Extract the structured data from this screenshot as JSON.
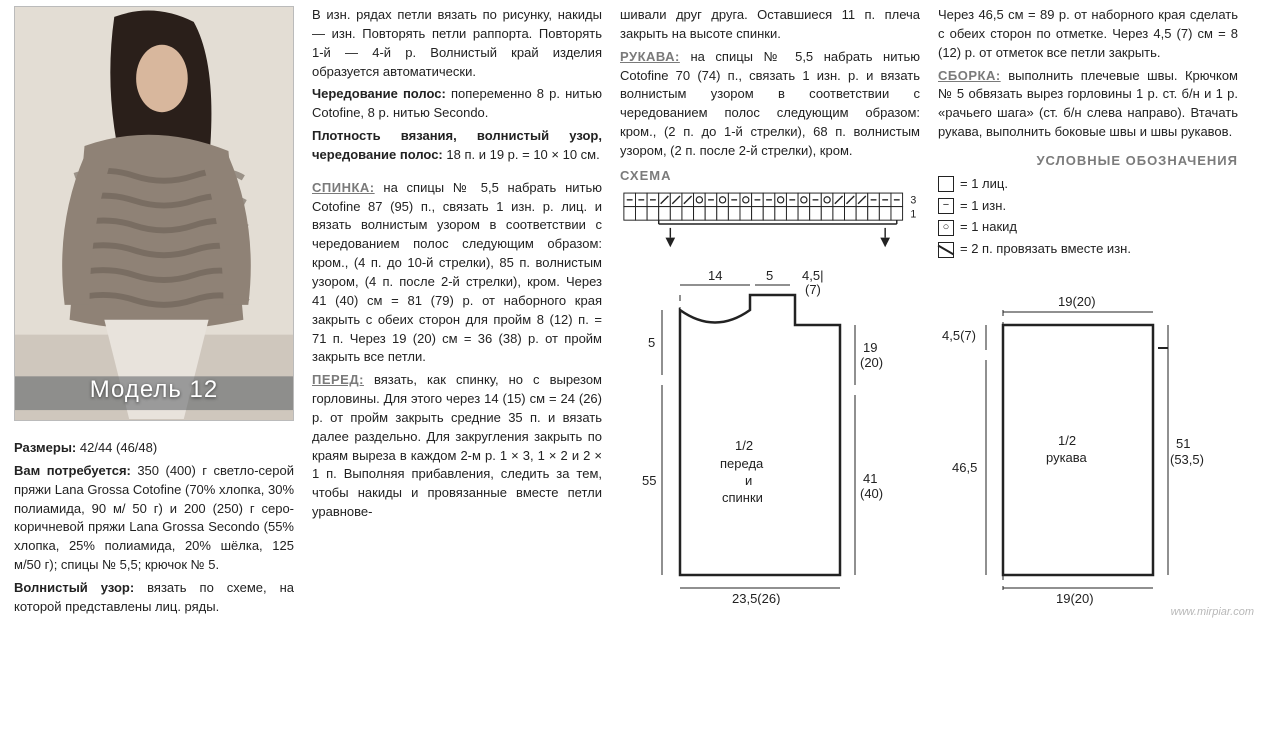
{
  "photo": {
    "model_label": "Модель 12"
  },
  "col1": {
    "sizes_label": "Размеры:",
    "sizes_val": "42/44 (46/48)",
    "needs_label": "Вам потребуется:",
    "needs_text": "350 (400) г светло-серой пряжи Lana Grossa Cotofine (70% хлопка, 30% полиамида, 90 м/ 50 г) и 200 (250) г серо-коричневой пряжи Lana Grossa Secondo (55% хлопка, 25% полиамида, 20% шёлка, 125 м/50 г); спицы № 5,5; крючок № 5.",
    "wave_label": "Волнистый узор:",
    "wave_text": "вязать по схеме, на которой представлены лиц. ряды."
  },
  "col2": {
    "p1": "В изн. рядах петли вязать по рисунку, накиды — изн. Повторять петли раппорта. Повторять 1-й — 4-й р. Волнистый край изделия образуется автоматически.",
    "alt_label": "Чередование полос:",
    "alt_text": "попеременно 8 р. нитью Cotofine, 8 р. нитью Secondo.",
    "density_label": "Плотность вязания, волнистый узор, чередование полос:",
    "density_text": "18 п. и 19 р. = 10 × 10 см.",
    "back_label": "СПИНКА:",
    "back_text": "на спицы № 5,5 набрать нитью Cotofine 87 (95) п., связать 1 изн. р. лиц. и вязать волнистым узором в соответствии с чередованием полос следующим образом: кром., (4 п. до 10-й стрелки), 85 п. волнистым узором, (4 п. после 2-й стрелки), кром. Через 41 (40) см = 81 (79) р. от наборного края закрыть с обеих сторон для пройм 8 (12) п. = 71 п. Через 19 (20) см = 36 (38) р. от пройм закрыть все петли.",
    "front_label": "ПЕРЕД:",
    "front_text": "вязать, как спинку, но с вырезом горловины. Для этого через 14 (15) см = 24 (26) р. от пройм закрыть средние 35 п. и вязать далее раздельно. Для закругления закрыть по краям выреза в каждом 2-м р. 1 × 3, 1 × 2 и 2 × 1 п. Выполняя прибавления, следить за тем, чтобы накиды и провязанные вместе петли уравнове-"
  },
  "col3": {
    "p1": "шивали друг друга. Оставшиеся 11 п. плеча закрыть на высоте спинки.",
    "sleeves_label": "РУКАВА:",
    "sleeves_text": "на спицы № 5,5 набрать нитью Cotofine 70 (74) п., связать 1 изн. р. и вязать волнистым узором в соответствии с чередованием полос следующим образом: кром., (2 п. до 1-й стрелки), 68 п. волнистым узором, (2 п. после 2-й стрелки), кром.",
    "schema_label": "СХЕМА",
    "schema": {
      "cells_row3": [
        "-",
        "-",
        "-",
        "/",
        "/",
        "/",
        "o",
        "-",
        "o",
        "-",
        "o",
        "-",
        "-",
        "o",
        "-",
        "o",
        "-",
        "o",
        "/",
        "/",
        "/",
        "-",
        "-",
        "-"
      ],
      "row_labels": [
        "3",
        "1"
      ],
      "colors": {
        "border": "#222",
        "fill": "#fff"
      }
    },
    "body_diagram": {
      "top_14": "14",
      "top_5": "5",
      "top_45": "4,5| (7)",
      "left_5": "5",
      "right_19": "19 (20)",
      "center": "1/2 переда и спинки",
      "left_55": "55",
      "right_41": "41 (40)",
      "bottom": "23,5(26)"
    }
  },
  "col4": {
    "p1": "Через 46,5 см = 89 р. от наборного края сделать с обеих сторон по отметке. Через 4,5 (7) см = 8 (12) р. от отметок все петли закрыть.",
    "assembly_label": "СБОРКА:",
    "assembly_text": "выполнить плечевые швы. Крючком № 5 обвязать вырез горловины 1 р. ст. б/н и 1 р. «рачьего шага» (ст. б/н слева направо). Втачать рукава, выполнить боковые швы и швы рукавов.",
    "legend_label": "УСЛОВНЫЕ ОБОЗНАЧЕНИЯ",
    "legend": [
      {
        "sym": "empty",
        "text": "= 1 лиц."
      },
      {
        "sym": "minus",
        "text": "= 1 изн."
      },
      {
        "sym": "circle",
        "text": "= 1 накид"
      },
      {
        "sym": "slash",
        "text": "= 2 п. провязать вместе изн."
      }
    ],
    "sleeve_diagram": {
      "top": "19(20)",
      "left_45": "4,5(7)",
      "center": "1/2 рукава",
      "left_465": "46,5",
      "right_51": "51 (53,5)",
      "bottom": "19(20)"
    }
  },
  "watermark": "www.mirpiar.com"
}
